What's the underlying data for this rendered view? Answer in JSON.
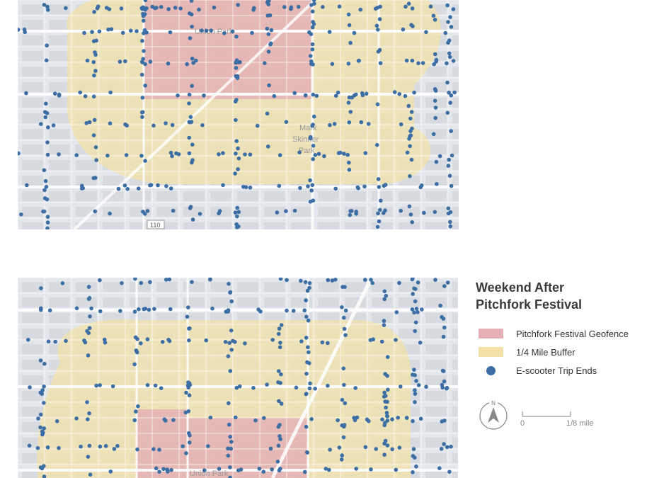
{
  "maps": [
    {
      "id": "top",
      "labels": {
        "park_union": "Union Park",
        "park_skinner_1": "Mark",
        "park_skinner_2": "Skinner",
        "park_skinner_3": "Park",
        "route_shield": "110"
      }
    },
    {
      "id": "bottom",
      "labels": {
        "park_union": "Union Park"
      }
    }
  ],
  "legend": {
    "title_line1": "Weekend After",
    "title_line2": "Pitchfork Festival",
    "items": [
      {
        "label": "Pitchfork Festival Geofence",
        "color": "#e4b0b5",
        "shape": "rect"
      },
      {
        "label": "1/4 Mile Buffer",
        "color": "#f3e1a8",
        "shape": "rect"
      },
      {
        "label": "E-scooter Trip Ends",
        "color": "#3b6ea5",
        "shape": "dot"
      }
    ]
  },
  "north_arrow": {
    "letter": "N"
  },
  "scale": {
    "start": "0",
    "end": "1/8 mile"
  },
  "colors": {
    "base_map": "#e3e6ea",
    "street": "#ffffff",
    "block": "#d8dce1",
    "buffer": "#f3e1a8",
    "geofence": "#e4b0b5",
    "trip_end": "#3b6ea5"
  }
}
